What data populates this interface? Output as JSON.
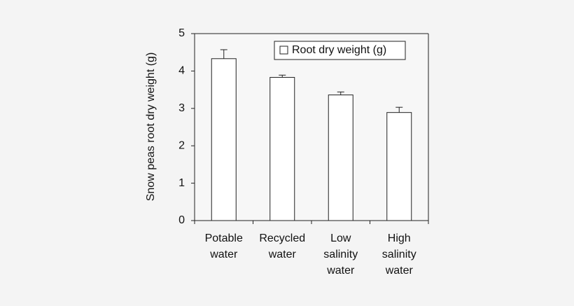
{
  "chart_data": {
    "type": "bar",
    "y_label": "Snow peas root dry weight (g)",
    "categories": [
      [
        "Potable",
        "water"
      ],
      [
        "Recycled",
        "water"
      ],
      [
        "Low",
        "salinity",
        "water"
      ],
      [
        "High",
        "salinity",
        "water"
      ]
    ],
    "series": [
      {
        "name": "Root dry weight (g)",
        "color": "#ffffff",
        "values": [
          4.33,
          3.83,
          3.36,
          2.89
        ],
        "errors": [
          0.24,
          0.06,
          0.08,
          0.14
        ]
      }
    ],
    "ylim": [
      0,
      5
    ],
    "yticks": [
      0,
      1,
      2,
      3,
      4,
      5
    ],
    "grid": false,
    "legend": "top-right"
  }
}
